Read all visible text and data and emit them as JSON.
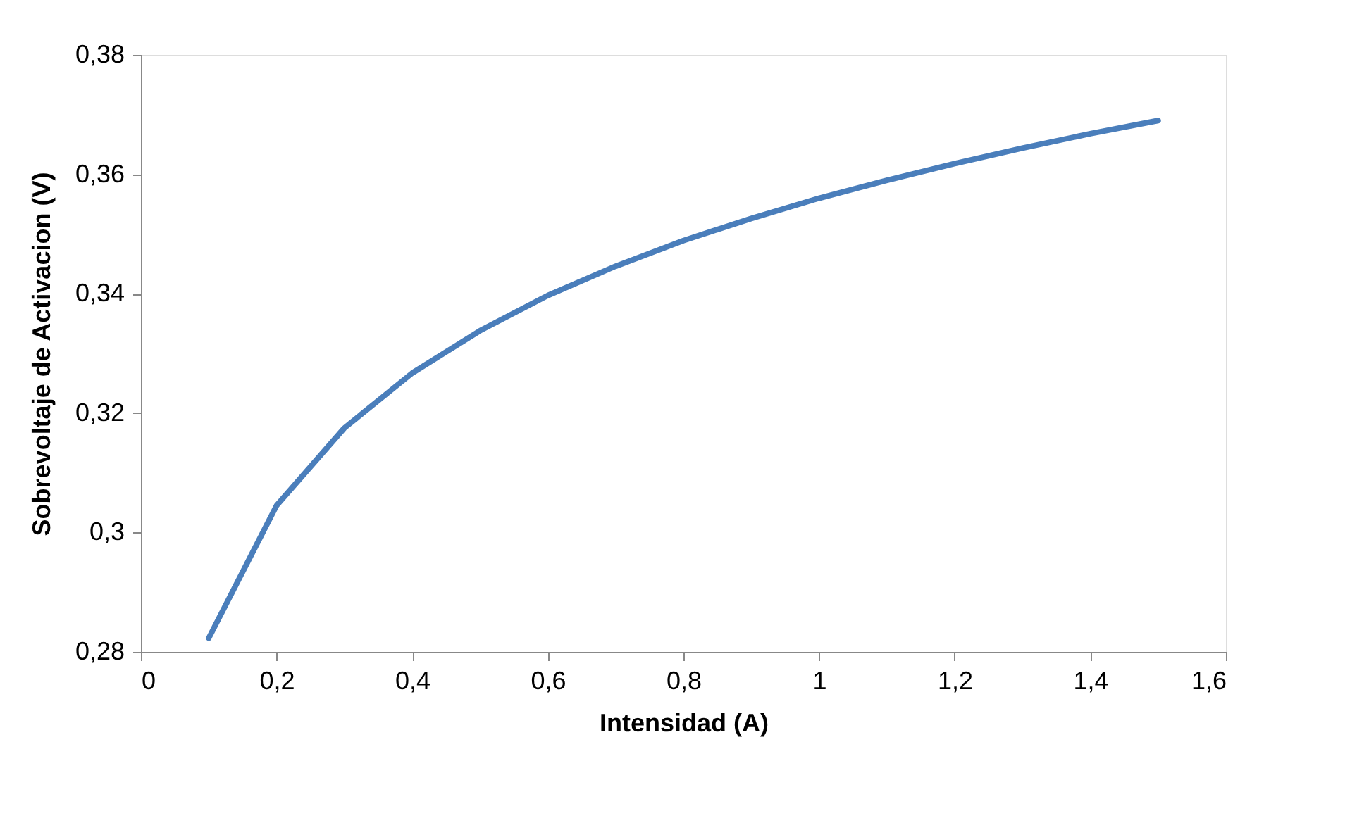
{
  "chart_data": {
    "type": "line",
    "xlabel": "Intensidad (A)",
    "ylabel": "Sobrevoltaje de Activacion (V)",
    "x": [
      0.1,
      0.2,
      0.3,
      0.4,
      0.5,
      0.6,
      0.7,
      0.8,
      0.9,
      1.0,
      1.1,
      1.2,
      1.3,
      1.4,
      1.5
    ],
    "series": [
      {
        "color": "#4a7ebb",
        "values": [
          0.2823,
          0.3045,
          0.3175,
          0.3267,
          0.3338,
          0.3397,
          0.3446,
          0.3489,
          0.3526,
          0.356,
          0.359,
          0.3618,
          0.3644,
          0.3668,
          0.369
        ]
      }
    ],
    "xlim": [
      0,
      1.6
    ],
    "ylim": [
      0.28,
      0.38
    ],
    "xticks": [
      0,
      {
        "value": 0.2,
        "label": "0,2"
      },
      {
        "value": 0.4,
        "label": "0,4"
      },
      {
        "value": 0.6,
        "label": "0,6"
      },
      {
        "value": 0.8,
        "label": "0,8"
      },
      1,
      {
        "value": 1.2,
        "label": "1,2"
      },
      {
        "value": 1.4,
        "label": "1,4"
      },
      {
        "value": 1.6,
        "label": "1,6"
      }
    ],
    "yticks": [
      {
        "value": 0.28,
        "label": "0,28"
      },
      {
        "value": 0.3,
        "label": "0,3"
      },
      {
        "value": 0.32,
        "label": "0,32"
      },
      {
        "value": 0.34,
        "label": "0,34"
      },
      {
        "value": 0.36,
        "label": "0,36"
      },
      {
        "value": 0.38,
        "label": "0,38"
      }
    ],
    "grid": false,
    "legend": false,
    "marker": "none",
    "line_style": "solid"
  }
}
